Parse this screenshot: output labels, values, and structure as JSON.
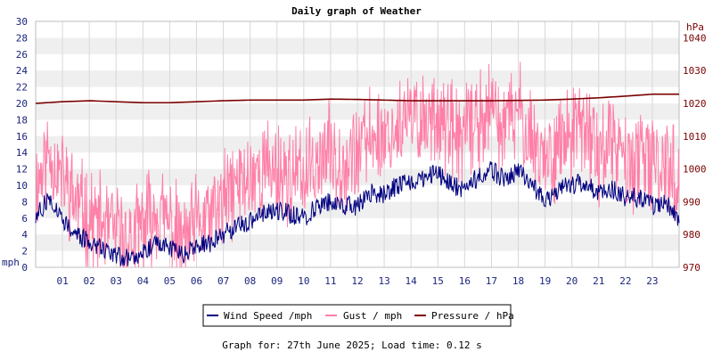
{
  "chart_data": {
    "type": "line",
    "title": "Daily graph of Weather",
    "footer": "Graph for: 27th June 2025; Load time: 0.12 s",
    "y_left": {
      "label": "mph",
      "range": [
        0,
        30
      ],
      "ticks": [
        "0",
        "2",
        "4",
        "6",
        "8",
        "10",
        "12",
        "14",
        "16",
        "18",
        "20",
        "22",
        "24",
        "26",
        "28",
        "30"
      ]
    },
    "y_right": {
      "label": "hPa",
      "range": [
        970,
        1045
      ],
      "ticks": [
        "970",
        "980",
        "990",
        "1000",
        "1010",
        "1020",
        "1030",
        "1040"
      ]
    },
    "x": {
      "range": [
        0,
        24
      ],
      "ticks": [
        "01",
        "02",
        "03",
        "04",
        "05",
        "06",
        "07",
        "08",
        "09",
        "10",
        "11",
        "12",
        "13",
        "14",
        "15",
        "16",
        "17",
        "18",
        "19",
        "20",
        "21",
        "22",
        "23"
      ]
    },
    "legend": [
      {
        "name": "Wind Speed /mph",
        "color": "#000080"
      },
      {
        "name": "Gust / mph",
        "color": "#ff7fa8"
      },
      {
        "name": "Pressure / hPa",
        "color": "#7b0000"
      }
    ],
    "series": [
      {
        "name": "Wind Speed /mph",
        "axis": "left",
        "color": "#000080",
        "x": [
          0,
          0.5,
          1,
          1.5,
          2,
          2.5,
          3,
          3.5,
          4,
          4.5,
          5,
          5.5,
          6,
          6.5,
          7,
          7.5,
          8,
          8.5,
          9,
          9.5,
          10,
          10.5,
          11,
          11.5,
          12,
          12.5,
          13,
          13.5,
          14,
          14.5,
          15,
          15.5,
          16,
          16.5,
          17,
          17.5,
          18,
          18.5,
          19,
          19.5,
          20,
          20.5,
          21,
          21.5,
          22,
          22.5,
          23,
          23.5,
          24
        ],
        "values": [
          6,
          8.5,
          6,
          4,
          3,
          2.5,
          1.5,
          1,
          2,
          3,
          2.5,
          1.5,
          2.5,
          3,
          4,
          5,
          5.5,
          6.5,
          7,
          6.5,
          6,
          7.5,
          8,
          7.5,
          7.5,
          9,
          9,
          10,
          10.5,
          11,
          11.5,
          10,
          9.5,
          11,
          12,
          10.5,
          12,
          10,
          8,
          9.5,
          10,
          10.5,
          9,
          9.5,
          8.5,
          8.5,
          7.5,
          8,
          6
        ]
      },
      {
        "name": "Gust / mph",
        "axis": "left",
        "color": "#ff7fa8",
        "x": [
          0,
          0.5,
          1,
          1.5,
          2,
          2.5,
          3,
          3.5,
          4,
          4.5,
          5,
          5.5,
          6,
          6.5,
          7,
          7.5,
          8,
          8.5,
          9,
          9.5,
          10,
          10.5,
          11,
          11.5,
          12,
          12.5,
          13,
          13.5,
          14,
          14.5,
          15,
          15.5,
          16,
          16.5,
          17,
          17.5,
          18,
          18.5,
          19,
          19.5,
          20,
          20.5,
          21,
          21.5,
          22,
          22.5,
          23,
          23.5,
          24
        ],
        "values": [
          10,
          14,
          11,
          8,
          6,
          5,
          4,
          3,
          5,
          7,
          5,
          3,
          5,
          6,
          8,
          10,
          11,
          12,
          12,
          11,
          11,
          13,
          14,
          13,
          14,
          16,
          16,
          17,
          18,
          18,
          19,
          16,
          16,
          18,
          19,
          17,
          19,
          16,
          13,
          15,
          16,
          17,
          14,
          15,
          13,
          13,
          12,
          13,
          10
        ]
      },
      {
        "name": "Pressure / hPa",
        "axis": "right",
        "color": "#7b0000",
        "x": [
          0,
          1,
          2,
          3,
          4,
          5,
          6,
          7,
          8,
          9,
          10,
          11,
          12,
          13,
          14,
          15,
          16,
          17,
          18,
          19,
          20,
          21,
          22,
          23,
          24
        ],
        "values": [
          1020,
          1020.5,
          1020.8,
          1020.5,
          1020.2,
          1020.2,
          1020.5,
          1020.8,
          1021,
          1021,
          1021,
          1021.3,
          1021.2,
          1021,
          1020.8,
          1020.8,
          1020.8,
          1020.8,
          1020.9,
          1021,
          1021.3,
          1021.7,
          1022.2,
          1022.8,
          1022.8
        ]
      }
    ]
  }
}
